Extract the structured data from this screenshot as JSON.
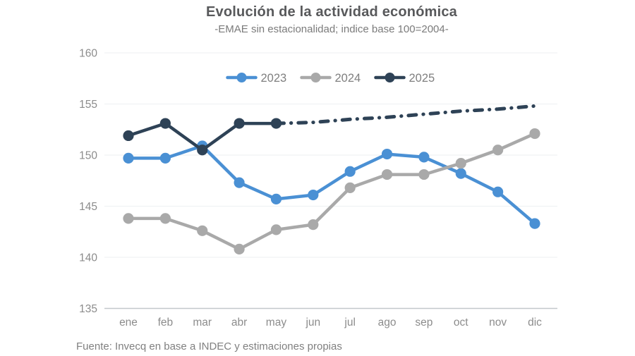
{
  "title": "Evolución de la actividad económica",
  "subtitle": "-EMAE sin estacionalidad; indice base 100=2004-",
  "source": "Fuente: Invecq en base a INDEC y estimaciones propias",
  "colors": {
    "title_text": "#58595b",
    "subtitle_text": "#7b7b7b",
    "tick_label": "#8c8c8c",
    "legend_label": "#7f7f7f",
    "grid_line": "#f0f2f4",
    "axis_line": "#c3c7cb",
    "background": "#ffffff"
  },
  "chart_data": {
    "type": "line",
    "title": "Evolución de la actividad económica",
    "subtitle": "-EMAE sin estacionalidad; indice base 100=2004-",
    "xlabel": "",
    "ylabel": "",
    "ylim": [
      135,
      160
    ],
    "yticks": [
      160,
      155,
      150,
      145,
      140,
      135
    ],
    "grid": true,
    "legend_position": "top-center",
    "categories": [
      "ene",
      "feb",
      "mar",
      "abr",
      "may",
      "jun",
      "jul",
      "ago",
      "sep",
      "oct",
      "nov",
      "dic"
    ],
    "series": [
      {
        "name": "2023",
        "color": "#4a90d4",
        "marker": "circle",
        "line_style": "solid",
        "values": [
          149.7,
          149.7,
          150.9,
          147.3,
          145.7,
          146.1,
          148.4,
          150.1,
          149.8,
          148.2,
          146.4,
          143.3
        ]
      },
      {
        "name": "2024",
        "color": "#a9a9a9",
        "marker": "circle",
        "line_style": "solid",
        "values": [
          143.8,
          143.8,
          142.6,
          140.8,
          142.7,
          143.2,
          146.8,
          148.1,
          148.1,
          149.2,
          150.5,
          152.1
        ]
      },
      {
        "name": "2025",
        "color": "#2e4256",
        "marker": "circle",
        "line_style": "solid-then-dashdot",
        "solid_until_index": 4,
        "markers_until_index": 4,
        "values": [
          151.9,
          153.1,
          150.5,
          153.1,
          153.1,
          153.2,
          153.5,
          153.7,
          154.0,
          154.3,
          154.5,
          154.8
        ]
      }
    ]
  }
}
